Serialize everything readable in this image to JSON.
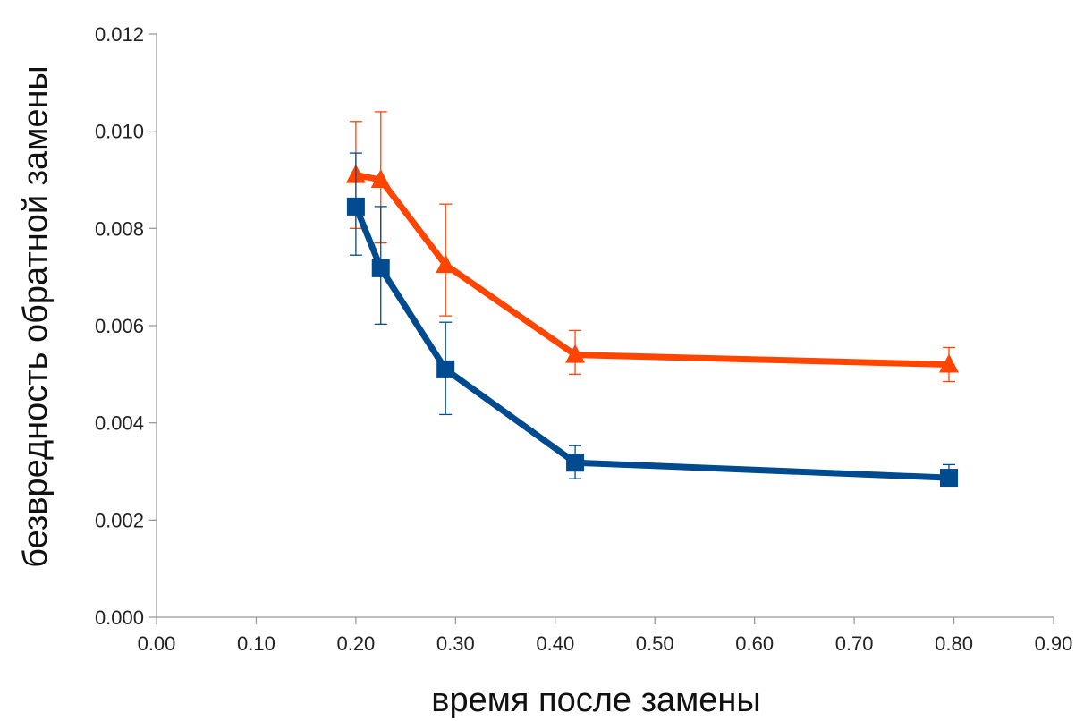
{
  "chart_data": {
    "type": "line",
    "title": "",
    "xlabel": "время после замены",
    "ylabel": "безвредность обратной замены",
    "xlim": [
      0,
      0.9
    ],
    "ylim": [
      0,
      0.012
    ],
    "xticks": [
      "0.00",
      "0.10",
      "0.20",
      "0.30",
      "0.40",
      "0.50",
      "0.60",
      "0.70",
      "0.80",
      "0.90"
    ],
    "yticks": [
      "0.000",
      "0.002",
      "0.004",
      "0.006",
      "0.008",
      "0.010",
      "0.012"
    ],
    "grid": false,
    "legend": "none",
    "series": [
      {
        "color": "#ff4500",
        "marker": "triangle",
        "x": [
          0.2,
          0.225,
          0.29,
          0.42,
          0.795
        ],
        "y": [
          0.0091,
          0.009,
          0.00725,
          0.0054,
          0.0052
        ],
        "err_low": [
          0.0011,
          0.0013,
          0.00105,
          0.0004,
          0.00035
        ],
        "err_high": [
          0.0011,
          0.0014,
          0.00125,
          0.0005,
          0.00035
        ]
      },
      {
        "color": "#004a8f",
        "marker": "square",
        "x": [
          0.2,
          0.225,
          0.29,
          0.42,
          0.795
        ],
        "y": [
          0.00845,
          0.00718,
          0.0051,
          0.00318,
          0.00287
        ],
        "err_low": [
          0.001,
          0.00115,
          0.00093,
          0.00033,
          0.0
        ],
        "err_high": [
          0.0011,
          0.00127,
          0.00097,
          0.00035,
          0.00027
        ]
      }
    ]
  }
}
